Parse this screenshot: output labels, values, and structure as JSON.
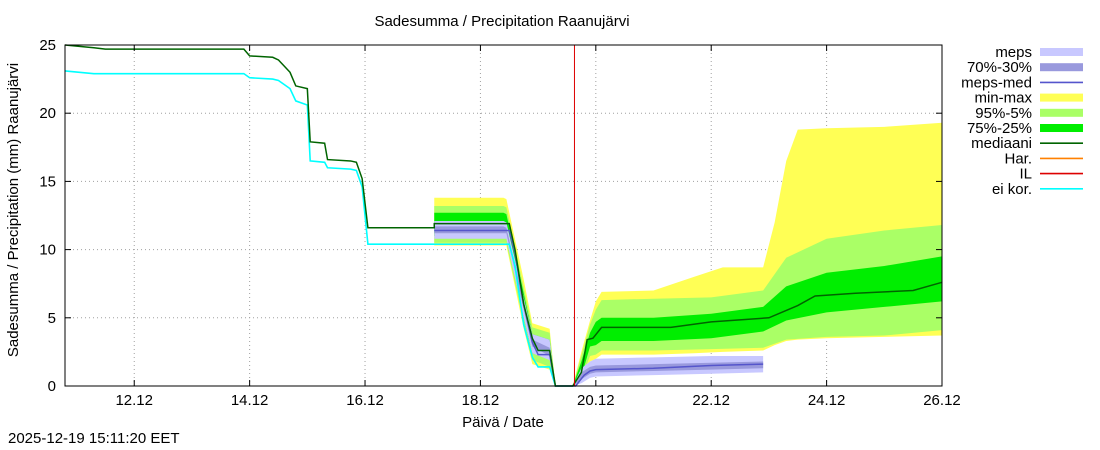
{
  "chart_data": {
    "type": "area",
    "title": "Sadesumma / Precipitation  Raanujärvi",
    "xlabel": "Päivä / Date",
    "ylabel": "Sadesumma / Precipitation (mm)  Raanujärvi",
    "ylim": [
      0,
      25
    ],
    "xlim": [
      10.8,
      26.0
    ],
    "grid": true,
    "yticks": [
      0,
      5,
      10,
      15,
      20,
      25
    ],
    "xticks": [
      {
        "value": 12,
        "label": "12.12"
      },
      {
        "value": 14,
        "label": "14.12"
      },
      {
        "value": 16,
        "label": "16.12"
      },
      {
        "value": 18,
        "label": "18.12"
      },
      {
        "value": 20,
        "label": "20.12"
      },
      {
        "value": 22,
        "label": "22.12"
      },
      {
        "value": 24,
        "label": "24.12"
      },
      {
        "value": 26,
        "label": "26.12"
      }
    ],
    "analysis_time": 19.63,
    "legend": [
      {
        "label": "meps",
        "color": "#c8c8ff",
        "kind": "band"
      },
      {
        "label": "70%-30%",
        "color": "#9999dd",
        "kind": "band"
      },
      {
        "label": "meps-med",
        "color": "#5555cc",
        "kind": "line"
      },
      {
        "label": "min-max",
        "color": "#ffff55",
        "kind": "band"
      },
      {
        "label": "95%-5%",
        "color": "#aaff66",
        "kind": "band"
      },
      {
        "label": "75%-25%",
        "color": "#00ee00",
        "kind": "band"
      },
      {
        "label": "mediaani",
        "color": "#006400",
        "kind": "line"
      },
      {
        "label": "Har.",
        "color": "#ff8000",
        "kind": "line"
      },
      {
        "label": "IL",
        "color": "#dd0000",
        "kind": "line"
      },
      {
        "label": "ei kor.",
        "color": "#00ffff",
        "kind": "line"
      }
    ],
    "series": [
      {
        "name": "mediaani",
        "x": [
          10.8,
          11.3,
          11.5,
          13.9,
          14.0,
          14.4,
          14.5,
          14.7,
          14.8,
          15.0,
          15.05,
          15.3,
          15.35,
          15.75,
          15.85,
          15.95,
          16.05,
          17.2,
          17.2,
          18.5,
          18.6,
          18.75,
          18.9,
          19.0,
          19.2,
          19.3,
          19.6,
          19.75,
          19.85,
          19.95,
          20.1,
          21.0,
          21.3,
          22.0,
          23.0,
          23.5,
          23.8,
          24.5,
          25.5,
          26.0
        ],
        "y": [
          25.0,
          24.8,
          24.7,
          24.7,
          24.2,
          24.1,
          23.9,
          23.0,
          22.0,
          21.8,
          17.9,
          17.8,
          16.6,
          16.5,
          16.4,
          15.2,
          11.6,
          11.6,
          11.9,
          11.9,
          10.0,
          6.0,
          3.5,
          2.6,
          2.6,
          0.0,
          0.0,
          1.0,
          3.4,
          3.5,
          4.3,
          4.3,
          4.3,
          4.7,
          5.0,
          5.9,
          6.6,
          6.8,
          7.0,
          7.6
        ]
      },
      {
        "name": "ei kor.",
        "x": [
          10.8,
          11.3,
          11.5,
          13.9,
          14.0,
          14.4,
          14.5,
          14.7,
          14.8,
          15.0,
          15.05,
          15.3,
          15.35,
          15.75,
          15.85,
          15.95,
          16.05,
          18.5,
          18.6,
          18.75,
          18.9,
          19.0,
          19.2,
          19.3,
          19.6
        ],
        "y": [
          23.1,
          22.9,
          22.9,
          22.9,
          22.6,
          22.5,
          22.4,
          21.8,
          20.9,
          20.6,
          16.5,
          16.4,
          16.0,
          15.9,
          15.8,
          14.6,
          10.4,
          10.4,
          8.8,
          4.5,
          2.1,
          1.4,
          1.4,
          0.0,
          0.0
        ]
      },
      {
        "name": "meps-med",
        "x": [
          17.2,
          18.5,
          18.6,
          18.75,
          18.9,
          19.0,
          19.2,
          19.3,
          19.65,
          19.8,
          19.9,
          20.0,
          21.0,
          22.0,
          22.9
        ],
        "y": [
          11.4,
          11.4,
          9.7,
          6.0,
          3.2,
          2.3,
          2.3,
          0.0,
          0.0,
          0.8,
          1.1,
          1.2,
          1.3,
          1.5,
          1.6
        ]
      },
      {
        "name": "min-max",
        "x": [
          17.2,
          18.4,
          18.45,
          18.75,
          18.9,
          19.2,
          19.3,
          19.6,
          19.75,
          19.9,
          20.0,
          20.1,
          21.0,
          21.7,
          22.2,
          22.9,
          23.1,
          23.3,
          23.5,
          24.0,
          25.0,
          26.0
        ],
        "lower": [
          10.3,
          10.3,
          10.3,
          4.2,
          1.6,
          1.2,
          0.0,
          0.0,
          0.4,
          1.8,
          2.0,
          2.3,
          2.3,
          2.4,
          2.5,
          2.6,
          3.0,
          3.3,
          3.4,
          3.5,
          3.6,
          3.7
        ],
        "upper": [
          13.8,
          13.8,
          13.7,
          7.8,
          4.6,
          4.2,
          0.0,
          0.0,
          2.5,
          4.8,
          6.2,
          6.9,
          7.0,
          8.0,
          8.7,
          8.7,
          12.0,
          16.5,
          18.8,
          18.9,
          19.0,
          19.3
        ]
      },
      {
        "name": "95%-5%",
        "x": [
          17.2,
          18.4,
          18.45,
          18.75,
          18.9,
          19.2,
          19.3,
          19.6,
          19.75,
          19.9,
          20.0,
          20.1,
          21.0,
          22.0,
          22.9,
          23.3,
          24.0,
          25.0,
          26.0
        ],
        "lower": [
          10.5,
          10.5,
          10.5,
          4.6,
          1.9,
          1.4,
          0.0,
          0.0,
          0.6,
          2.2,
          2.3,
          2.6,
          2.6,
          2.7,
          2.8,
          3.4,
          3.6,
          3.7,
          4.1
        ],
        "upper": [
          13.2,
          13.2,
          13.1,
          7.2,
          4.3,
          3.9,
          0.0,
          0.0,
          2.2,
          4.5,
          5.6,
          6.3,
          6.4,
          6.5,
          7.0,
          9.4,
          10.8,
          11.4,
          11.8
        ]
      },
      {
        "name": "75%-25%",
        "x": [
          17.2,
          18.4,
          18.45,
          18.75,
          18.9,
          19.2,
          19.3,
          19.6,
          19.75,
          19.9,
          20.0,
          20.1,
          21.0,
          22.0,
          22.9,
          23.3,
          24.0,
          25.0,
          26.0
        ],
        "lower": [
          11.0,
          11.0,
          11.0,
          5.0,
          2.4,
          2.0,
          0.0,
          0.0,
          0.7,
          2.9,
          3.0,
          3.3,
          3.3,
          3.5,
          4.0,
          4.8,
          5.4,
          5.8,
          6.2
        ],
        "upper": [
          12.7,
          12.7,
          12.6,
          6.8,
          3.8,
          3.4,
          0.0,
          0.0,
          1.8,
          3.9,
          4.7,
          5.0,
          5.0,
          5.3,
          5.8,
          7.3,
          8.3,
          8.8,
          9.5
        ]
      },
      {
        "name": "meps",
        "x": [
          17.2,
          18.4,
          18.45,
          18.75,
          18.9,
          19.2,
          19.3,
          19.6,
          19.75,
          19.9,
          20.0,
          21.0,
          22.0,
          22.9
        ],
        "lower": [
          10.8,
          10.8,
          10.8,
          5.0,
          2.4,
          1.9,
          0.0,
          0.0,
          0.2,
          0.6,
          0.7,
          0.8,
          0.9,
          1.0
        ],
        "upper": [
          12.1,
          12.1,
          12.0,
          6.5,
          3.8,
          3.4,
          0.0,
          0.0,
          1.3,
          1.8,
          2.0,
          2.1,
          2.2,
          2.2
        ]
      },
      {
        "name": "70%-30%",
        "x": [
          17.2,
          18.4,
          18.45,
          18.75,
          18.9,
          19.2,
          19.3,
          19.6,
          19.75,
          19.9,
          20.0,
          21.0,
          22.0,
          22.9
        ],
        "lower": [
          11.2,
          11.2,
          11.2,
          5.6,
          2.9,
          2.2,
          0.0,
          0.0,
          0.5,
          0.9,
          1.0,
          1.1,
          1.2,
          1.3
        ],
        "upper": [
          11.7,
          11.7,
          11.6,
          6.2,
          3.4,
          2.8,
          0.0,
          0.0,
          1.0,
          1.4,
          1.5,
          1.6,
          1.7,
          1.8
        ]
      }
    ]
  },
  "footer": {
    "timestamp": "2025-12-19 15:11:20 EET"
  }
}
